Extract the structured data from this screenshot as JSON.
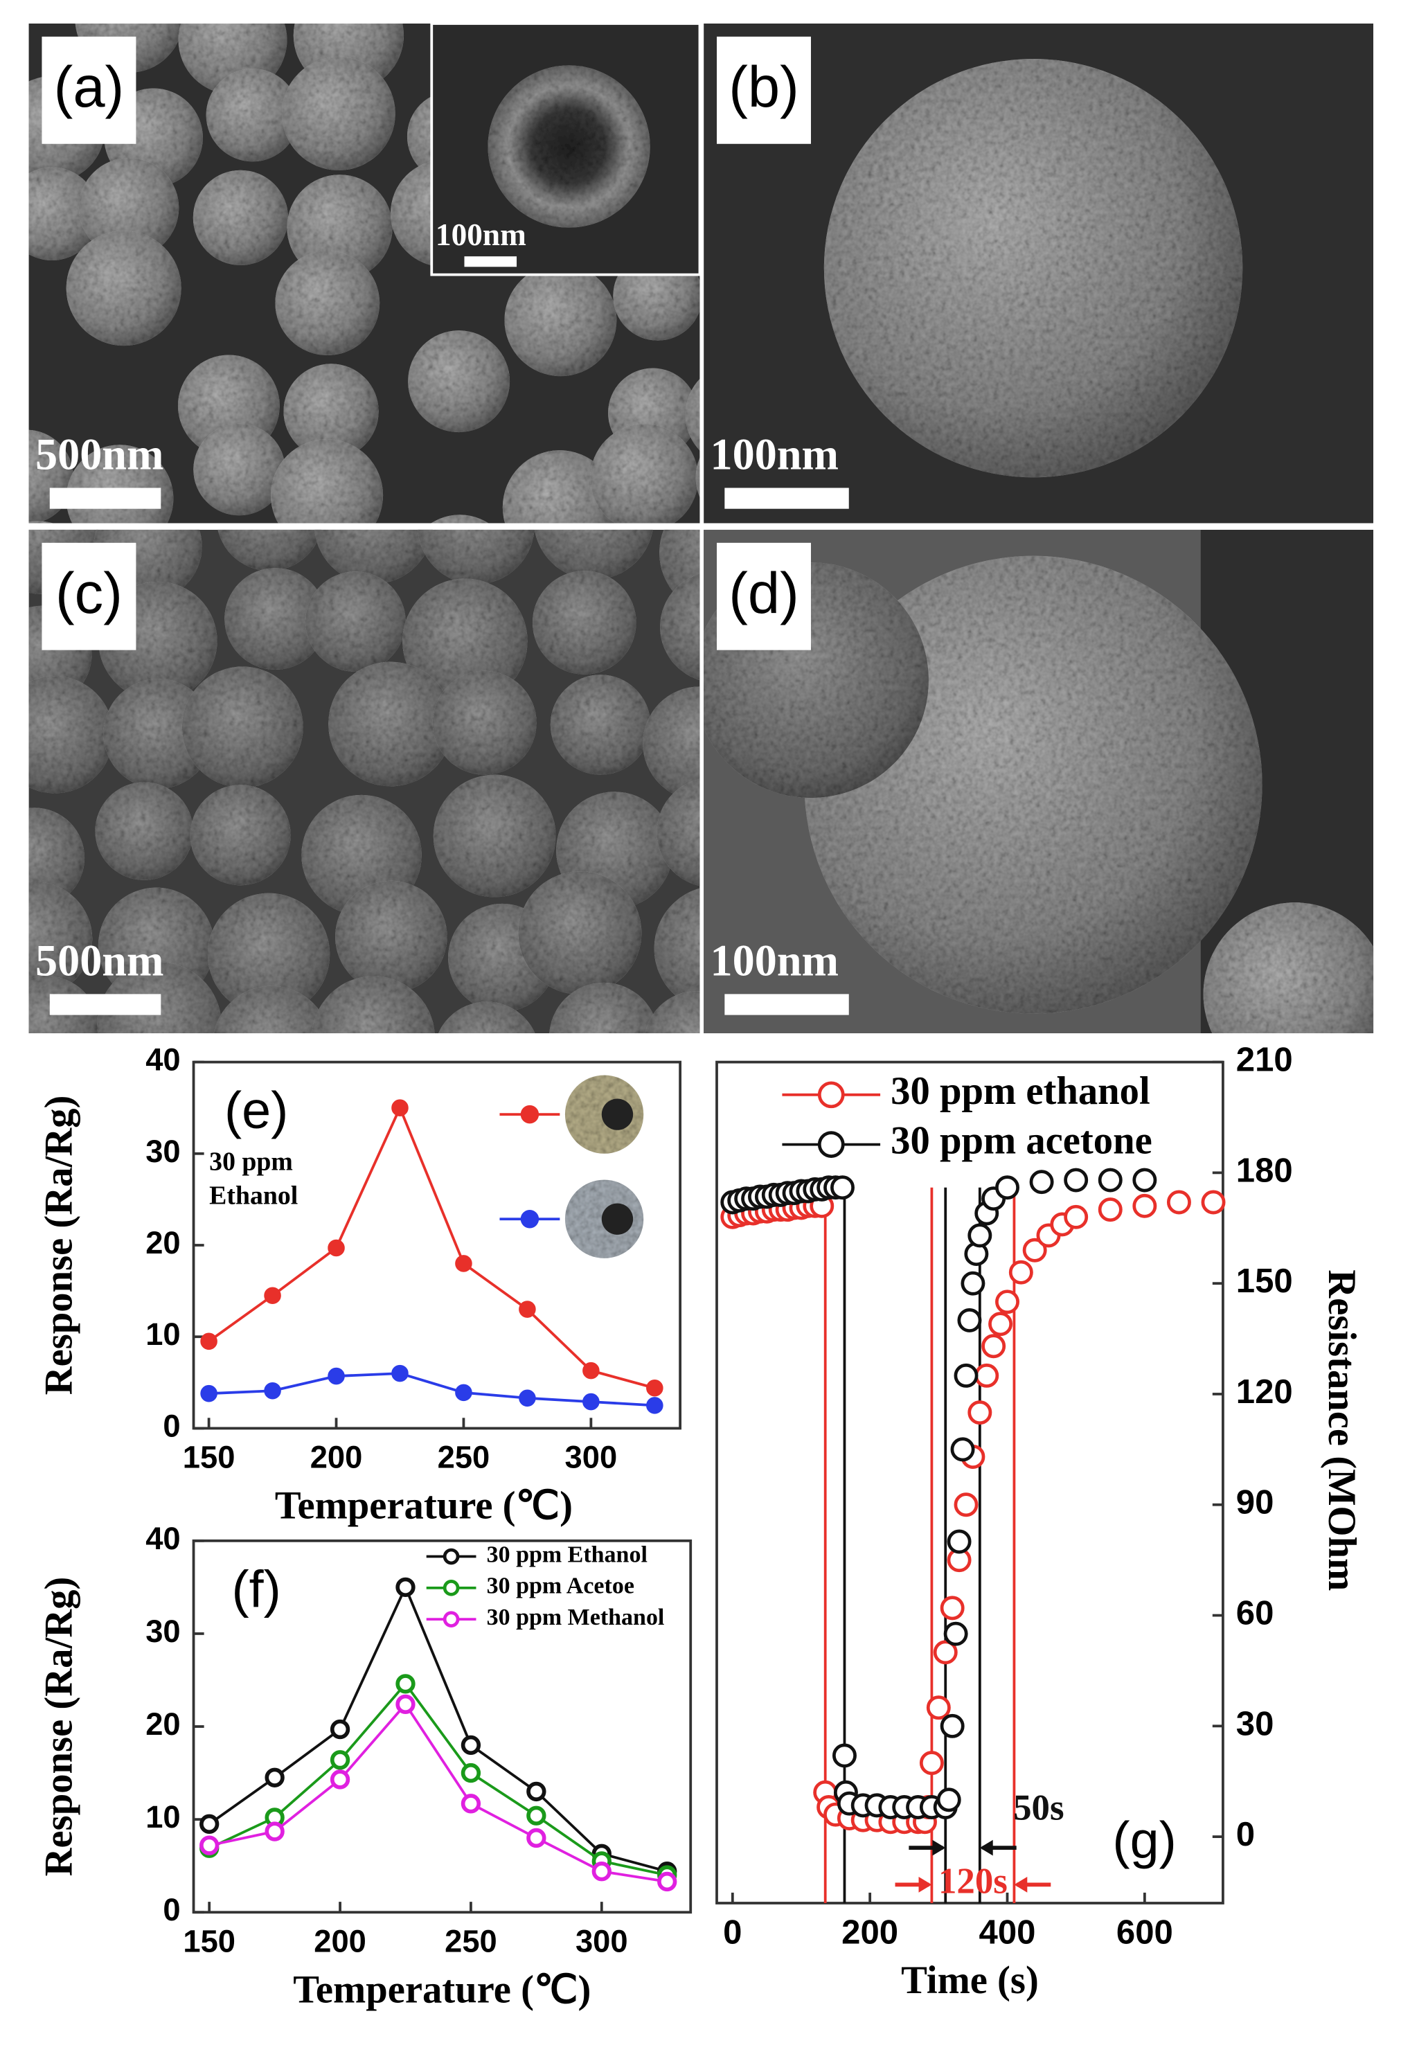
{
  "sem_panels": [
    {
      "label": "(a)",
      "scale_bar": "500nm",
      "inset_scale_bar": "100nm"
    },
    {
      "label": "(b)",
      "scale_bar": "100nm"
    },
    {
      "label": "(c)",
      "scale_bar": "500nm"
    },
    {
      "label": "(d)",
      "scale_bar": "100nm"
    }
  ],
  "chart_data": [
    {
      "type": "line",
      "panel_label": "(e)",
      "annotation": [
        "30 ppm",
        "Ethanol"
      ],
      "xlabel": "Temperature (℃)",
      "ylabel": "Response (Ra/Rg)",
      "x": [
        150,
        175,
        200,
        225,
        250,
        275,
        300,
        325
      ],
      "series": [
        {
          "color": "#e8302a",
          "values": [
            9.5,
            14.5,
            19.7,
            35,
            18,
            13,
            6.3,
            4.4
          ]
        },
        {
          "color": "#2a3ce8",
          "values": [
            3.8,
            4.1,
            5.7,
            6,
            3.9,
            3.3,
            2.9,
            2.5
          ]
        }
      ],
      "xlim": [
        144,
        335
      ],
      "ylim": [
        0,
        40
      ],
      "xticks": [
        150,
        200,
        250,
        300
      ],
      "yticks": [
        0,
        10,
        20,
        30,
        40
      ]
    },
    {
      "type": "line",
      "panel_label": "(f)",
      "xlabel": "Temperature (℃)",
      "ylabel": "Response (Ra/Rg)",
      "x": [
        150,
        175,
        200,
        225,
        250,
        275,
        300,
        325
      ],
      "series": [
        {
          "name": "30 ppm Ethanol",
          "color": "#111111",
          "values": [
            9.5,
            14.5,
            19.7,
            35,
            18,
            13,
            6.3,
            4.4
          ]
        },
        {
          "name": "30 ppm Acetoe",
          "color": "#1a9a1a",
          "values": [
            6.9,
            10.2,
            16.4,
            24.6,
            15,
            10.4,
            5.5,
            4
          ]
        },
        {
          "name": "30 ppm Methanol",
          "color": "#e020e0",
          "values": [
            7.2,
            8.7,
            14.3,
            22.4,
            11.7,
            8,
            4.4,
            3.3
          ]
        }
      ],
      "legend": "upper right",
      "xlim": [
        144,
        334
      ],
      "ylim": [
        0,
        40
      ],
      "xticks": [
        150,
        200,
        250,
        300
      ],
      "yticks": [
        0,
        10,
        20,
        30,
        40
      ]
    },
    {
      "type": "scatter",
      "panel_label": "(g)",
      "marker": "open-circle",
      "xlabel": "Time (s)",
      "ylabel": "Resistance (MOhm",
      "y_axis": "right",
      "series": [
        {
          "name": "30 ppm ethanol",
          "color": "#e8302a",
          "x": [
            0,
            10,
            20,
            30,
            40,
            50,
            60,
            70,
            80,
            90,
            100,
            110,
            120,
            130,
            135,
            140,
            150,
            170,
            190,
            210,
            230,
            250,
            270,
            280,
            285,
            290,
            300,
            310,
            320,
            330,
            340,
            350,
            360,
            370,
            380,
            390,
            400,
            420,
            440,
            460,
            480,
            500,
            550,
            600,
            650,
            700
          ],
          "values": [
            168,
            168.5,
            169,
            169,
            169.5,
            169.5,
            170,
            170,
            170,
            170.5,
            170.5,
            171,
            171,
            171,
            12,
            8,
            6,
            5,
            4.5,
            4.5,
            4,
            4,
            4,
            4,
            8,
            20,
            35,
            50,
            62,
            75,
            90,
            103,
            115,
            125,
            133,
            139,
            145,
            153,
            159,
            163,
            166,
            168,
            170,
            171,
            172,
            172
          ]
        },
        {
          "name": "30 ppm acetone",
          "color": "#111111",
          "x": [
            0,
            10,
            20,
            30,
            40,
            50,
            60,
            70,
            80,
            90,
            100,
            110,
            120,
            130,
            140,
            150,
            160,
            163,
            165,
            170,
            190,
            210,
            230,
            250,
            270,
            290,
            310,
            315,
            320,
            325,
            330,
            335,
            340,
            345,
            350,
            355,
            360,
            370,
            380,
            400,
            450,
            500,
            550,
            600
          ],
          "values": [
            172,
            172.5,
            173,
            173,
            173.5,
            173.5,
            174,
            174,
            174.5,
            174.5,
            175,
            175,
            175.5,
            175.5,
            176,
            176,
            176,
            22,
            12,
            9,
            8.5,
            8.5,
            8,
            8,
            8,
            8,
            8,
            10,
            30,
            55,
            80,
            105,
            125,
            140,
            150,
            158,
            163,
            169,
            173,
            176,
            177.5,
            178,
            178,
            178
          ]
        }
      ],
      "vlines": [
        {
          "x": 135,
          "color": "#e8302a"
        },
        {
          "x": 290,
          "color": "#e8302a"
        },
        {
          "x": 410,
          "color": "#e8302a"
        },
        {
          "x": 163,
          "color": "#111111"
        },
        {
          "x": 310,
          "color": "#111111"
        },
        {
          "x": 360,
          "color": "#111111"
        }
      ],
      "spans": [
        {
          "label": "50s",
          "from": 310,
          "to": 360,
          "color": "#111111"
        },
        {
          "label": "120s",
          "from": 290,
          "to": 410,
          "color": "#e8302a"
        }
      ],
      "legend": "upper left",
      "xlim": [
        -23,
        714
      ],
      "ylim": [
        -18,
        210
      ],
      "xticks": [
        0,
        200,
        400,
        600
      ],
      "yticks": [
        0,
        30,
        60,
        90,
        120,
        150,
        180,
        210
      ]
    }
  ]
}
